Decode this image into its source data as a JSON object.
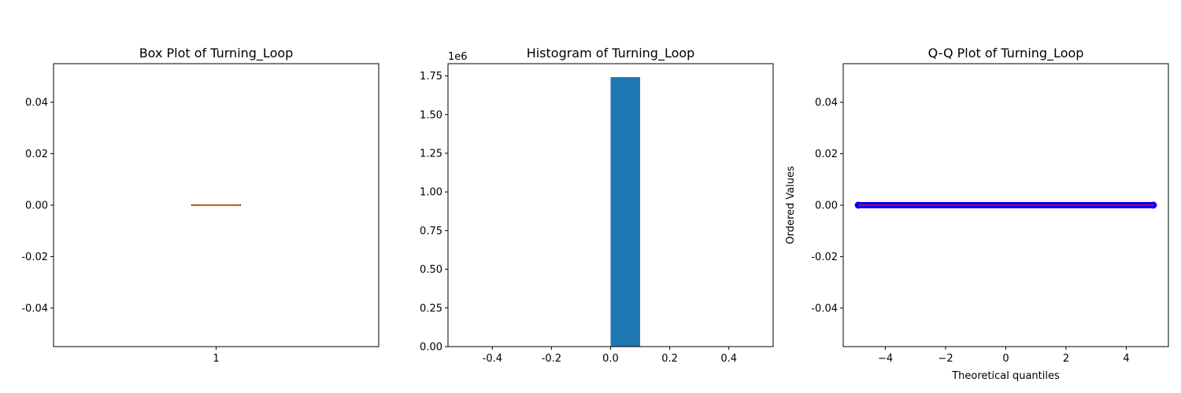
{
  "chart_data": [
    {
      "type": "box",
      "title": "Box Plot of Turning_Loop",
      "xlabel": "",
      "ylabel": "",
      "categories": [
        "1"
      ],
      "box": {
        "min": 0,
        "q1": 0,
        "median": 0,
        "q3": 0,
        "max": 0
      },
      "ylim": [
        -0.055,
        0.055
      ],
      "yticks": [
        "-0.04",
        "-0.02",
        "0.00",
        "0.02",
        "0.04"
      ],
      "ytick_values": [
        -0.04,
        -0.02,
        0,
        0.02,
        0.04
      ],
      "colors": {
        "box": "#000000",
        "median": "#ff7f0e"
      }
    },
    {
      "type": "bar",
      "title": "Histogram of Turning_Loop",
      "xlabel": "",
      "ylabel": "",
      "y_offset_label": "1e6",
      "bins": [
        {
          "x0": 0.0,
          "x1": 0.1,
          "count": 1742000
        }
      ],
      "xlim": [
        -0.55,
        0.55
      ],
      "ylim": [
        0,
        1829100
      ],
      "xticks": [
        "-0.4",
        "-0.2",
        "0.0",
        "0.2",
        "0.4"
      ],
      "xtick_values": [
        -0.4,
        -0.2,
        0.0,
        0.2,
        0.4
      ],
      "yticks": [
        "0.00",
        "0.25",
        "0.50",
        "0.75",
        "1.00",
        "1.25",
        "1.50",
        "1.75"
      ],
      "ytick_values": [
        0,
        250000,
        500000,
        750000,
        1000000,
        1250000,
        1500000,
        1750000
      ],
      "colors": {
        "bar": "#1f77b4"
      }
    },
    {
      "type": "scatter",
      "title": "Q-Q Plot of Turning_Loop",
      "xlabel": "Theoretical quantiles",
      "ylabel": "Ordered Values",
      "points_range": {
        "x_min": -4.9,
        "x_max": 4.9,
        "y": 0
      },
      "fit_line": {
        "x_min": -4.9,
        "x_max": 4.9,
        "y": 0
      },
      "xlim": [
        -5.4,
        5.4
      ],
      "ylim": [
        -0.055,
        0.055
      ],
      "xticks": [
        "−4",
        "−2",
        "0",
        "2",
        "4"
      ],
      "xtick_values": [
        -4,
        -2,
        0,
        2,
        4
      ],
      "yticks": [
        "-0.04",
        "-0.02",
        "0.00",
        "0.02",
        "0.04"
      ],
      "ytick_values": [
        -0.04,
        -0.02,
        0,
        0.02,
        0.04
      ],
      "colors": {
        "points": "#0000ff",
        "line": "#ff0000"
      }
    }
  ]
}
